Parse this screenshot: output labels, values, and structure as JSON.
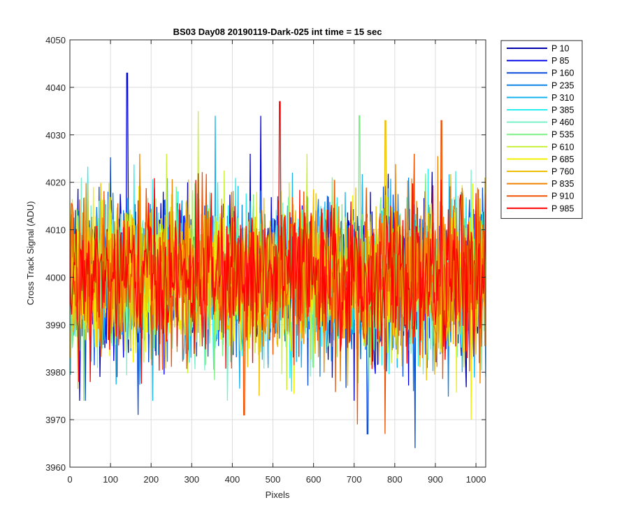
{
  "chart_data": {
    "type": "line",
    "title": "BS03 Day08 20190119-Dark-025 int time = 15 sec",
    "xlabel": "Pixels",
    "ylabel": "Cross Track Signal (ADU)",
    "xlim": [
      0,
      1024
    ],
    "ylim": [
      3960,
      4050
    ],
    "xticks": [
      0,
      100,
      200,
      300,
      400,
      500,
      600,
      700,
      800,
      900,
      1000
    ],
    "yticks": [
      3960,
      3970,
      3980,
      3990,
      4000,
      4010,
      4020,
      4030,
      4040,
      4050
    ],
    "grid": true,
    "legend_position": "outside-top-right",
    "series": [
      {
        "name": "P 10",
        "color": "#0000AA"
      },
      {
        "name": "P 85",
        "color": "#0000E6"
      },
      {
        "name": "P 160",
        "color": "#0A4BDC"
      },
      {
        "name": "P 235",
        "color": "#0A82E6"
      },
      {
        "name": "P 310",
        "color": "#14B4F0"
      },
      {
        "name": "P 385",
        "color": "#28F0F0"
      },
      {
        "name": "P 460",
        "color": "#78F0C8"
      },
      {
        "name": "P 535",
        "color": "#78F082"
      },
      {
        "name": "P 610",
        "color": "#C8F032"
      },
      {
        "name": "P 685",
        "color": "#F0F000"
      },
      {
        "name": "P 760",
        "color": "#F0BE00"
      },
      {
        "name": "P 835",
        "color": "#F08200"
      },
      {
        "name": "P 910",
        "color": "#F05000"
      },
      {
        "name": "P 985",
        "color": "#FF0000"
      }
    ],
    "notable_spikes": [
      {
        "series": "P 85",
        "x": 141,
        "y": 4043
      },
      {
        "series": "P 985",
        "x": 517,
        "y": 4037
      },
      {
        "series": "P 610",
        "x": 316,
        "y": 4035
      },
      {
        "series": "P 310",
        "x": 358,
        "y": 4034
      },
      {
        "series": "P 535",
        "x": 713,
        "y": 4034
      },
      {
        "series": "P 85",
        "x": 470,
        "y": 4034
      },
      {
        "series": "P 760",
        "x": 777,
        "y": 4033
      },
      {
        "series": "P 910",
        "x": 915,
        "y": 4033
      },
      {
        "series": "P 160",
        "x": 850,
        "y": 3964
      },
      {
        "series": "P 160",
        "x": 733,
        "y": 3967
      },
      {
        "series": "P 910",
        "x": 776,
        "y": 3967
      },
      {
        "series": "P 910",
        "x": 708,
        "y": 3969
      },
      {
        "series": "P 685",
        "x": 988,
        "y": 3970
      },
      {
        "series": "P 160",
        "x": 168,
        "y": 3971
      },
      {
        "series": "P 910",
        "x": 429,
        "y": 3971
      }
    ]
  }
}
